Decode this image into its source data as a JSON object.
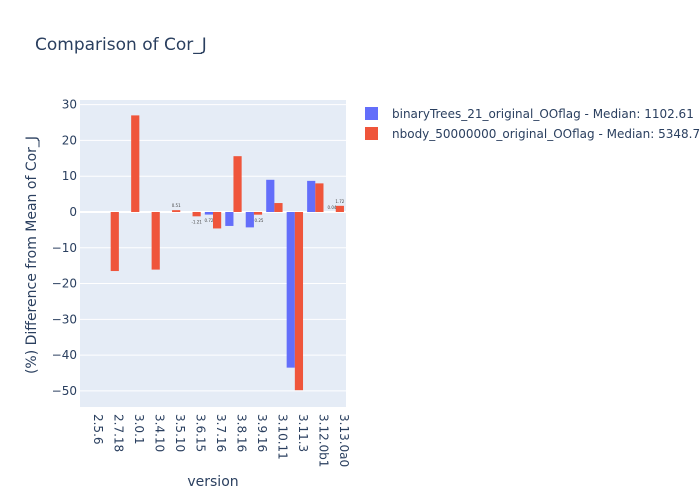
{
  "chart_data": {
    "type": "bar",
    "title": "Comparison of Cor_J",
    "xlabel": "version",
    "ylabel": "(%) Difference from Mean of Cor_J",
    "categories": [
      "2.5.6",
      "2.7.18",
      "3.0.1",
      "3.4.10",
      "3.5.10",
      "3.6.15",
      "3.7.16",
      "3.8.16",
      "3.9.16",
      "3.10.11",
      "3.11.3",
      "3.12.0b1",
      "3.13.0a0"
    ],
    "ylim": [
      -54.5,
      31.3
    ],
    "yticks": [
      -50,
      -40,
      -30,
      -20,
      -10,
      0,
      10,
      20,
      30
    ],
    "ytick_labels": [
      "−50",
      "−40",
      "−30",
      "−20",
      "−10",
      "0",
      "10",
      "20",
      "30"
    ],
    "grid": true,
    "legend_position": "top-right",
    "series": [
      {
        "name": "binaryTrees_21_original_OOflag - Median: 1102.61",
        "color": "#636efa",
        "values": [
          null,
          null,
          null,
          null,
          null,
          null,
          -0.72,
          -3.9,
          -4.3,
          9.0,
          -43.5,
          8.7,
          null
        ],
        "data_labels": [
          "",
          "",
          "",
          "",
          "",
          "",
          "",
          "",
          "",
          "",
          "",
          "",
          ""
        ]
      },
      {
        "name": "nbody_50000000_original_OOflag - Median: 5348.73",
        "color": "#ef553b",
        "values": [
          null,
          -16.5,
          27.0,
          -16.1,
          0.51,
          -1.21,
          -4.6,
          15.6,
          -0.75,
          2.5,
          -49.8,
          8.0,
          1.72
        ],
        "data_labels": [
          "",
          "",
          "",
          "",
          "0.51",
          "-1.21",
          "",
          "",
          "",
          "",
          "",
          "",
          "1.72"
        ]
      }
    ],
    "extra_labels": [
      "0.72",
      "0.25",
      "0.04"
    ]
  }
}
